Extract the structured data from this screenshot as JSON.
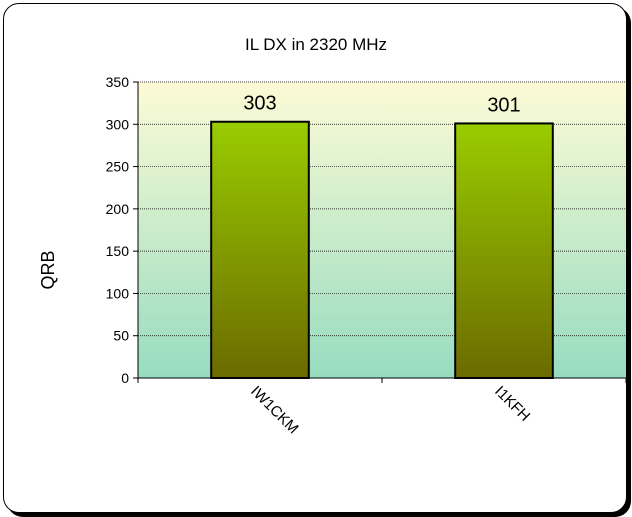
{
  "chart_data": {
    "type": "bar",
    "title": "IL DX in 2320 MHz",
    "xlabel": "",
    "ylabel": "QRB",
    "categories": [
      "IW1CKM",
      "I1KFH"
    ],
    "values": [
      303,
      301
    ],
    "data_labels": [
      "303",
      "301"
    ],
    "ylim": [
      0,
      350
    ],
    "yticks": [
      0,
      50,
      100,
      150,
      200,
      250,
      300,
      350
    ],
    "grid": true,
    "legend": "none",
    "colors": {
      "bar_top": "#99cc00",
      "bar_bottom": "#6b6b00",
      "plot_bg_top": "#fdfbd6",
      "plot_bg_bottom": "#97dcc0",
      "bar_border": "#000000"
    }
  }
}
